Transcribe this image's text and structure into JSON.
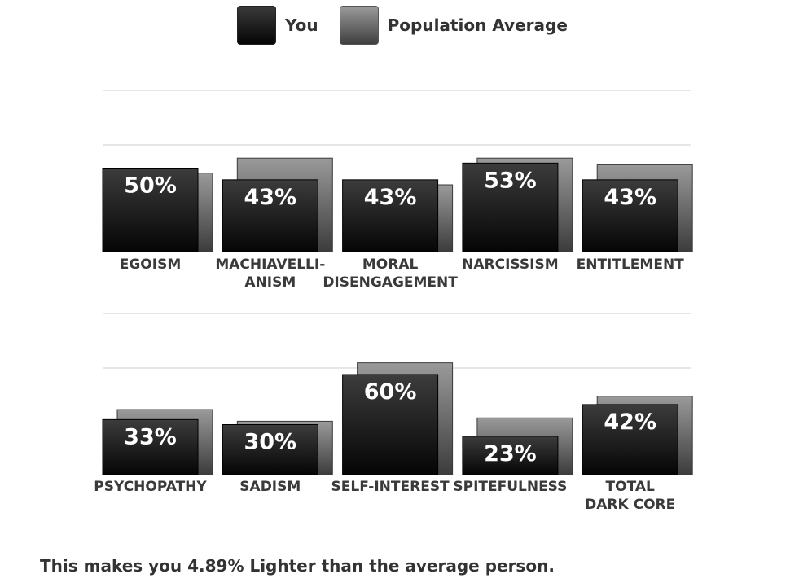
{
  "legend": {
    "you_label": "You",
    "avg_label": "Population Average"
  },
  "colors": {
    "you": "#101010",
    "average": "#555555",
    "label": "#3a3a3a",
    "grid": "#e6e6e6"
  },
  "chart_data": [
    {
      "type": "bar",
      "categories": [
        "EGOISM",
        "MACHIAVELLI-\nANISM",
        "MORAL\nDISENGAGEMENT",
        "NARCISSISM",
        "ENTITLEMENT"
      ],
      "series": [
        {
          "name": "You",
          "values": [
            50,
            43,
            43,
            53,
            43
          ]
        },
        {
          "name": "Population Average",
          "values": [
            47,
            56,
            40,
            56,
            52
          ]
        }
      ],
      "data_labels": [
        "50%",
        "43%",
        "43%",
        "53%",
        "43%"
      ],
      "ylim": [
        0,
        100
      ],
      "grid": true
    },
    {
      "type": "bar",
      "categories": [
        "PSYCHOPATHY",
        "SADISM",
        "SELF-INTEREST",
        "SPITEFULNESS",
        "TOTAL\nDARK CORE"
      ],
      "series": [
        {
          "name": "You",
          "values": [
            33,
            30,
            60,
            23,
            42
          ]
        },
        {
          "name": "Population Average",
          "values": [
            39,
            32,
            67,
            34,
            47
          ]
        }
      ],
      "data_labels": [
        "33%",
        "30%",
        "60%",
        "23%",
        "42%"
      ],
      "ylim": [
        0,
        100
      ],
      "grid": true
    }
  ],
  "summary": "This makes you 4.89% Lighter than the average person."
}
